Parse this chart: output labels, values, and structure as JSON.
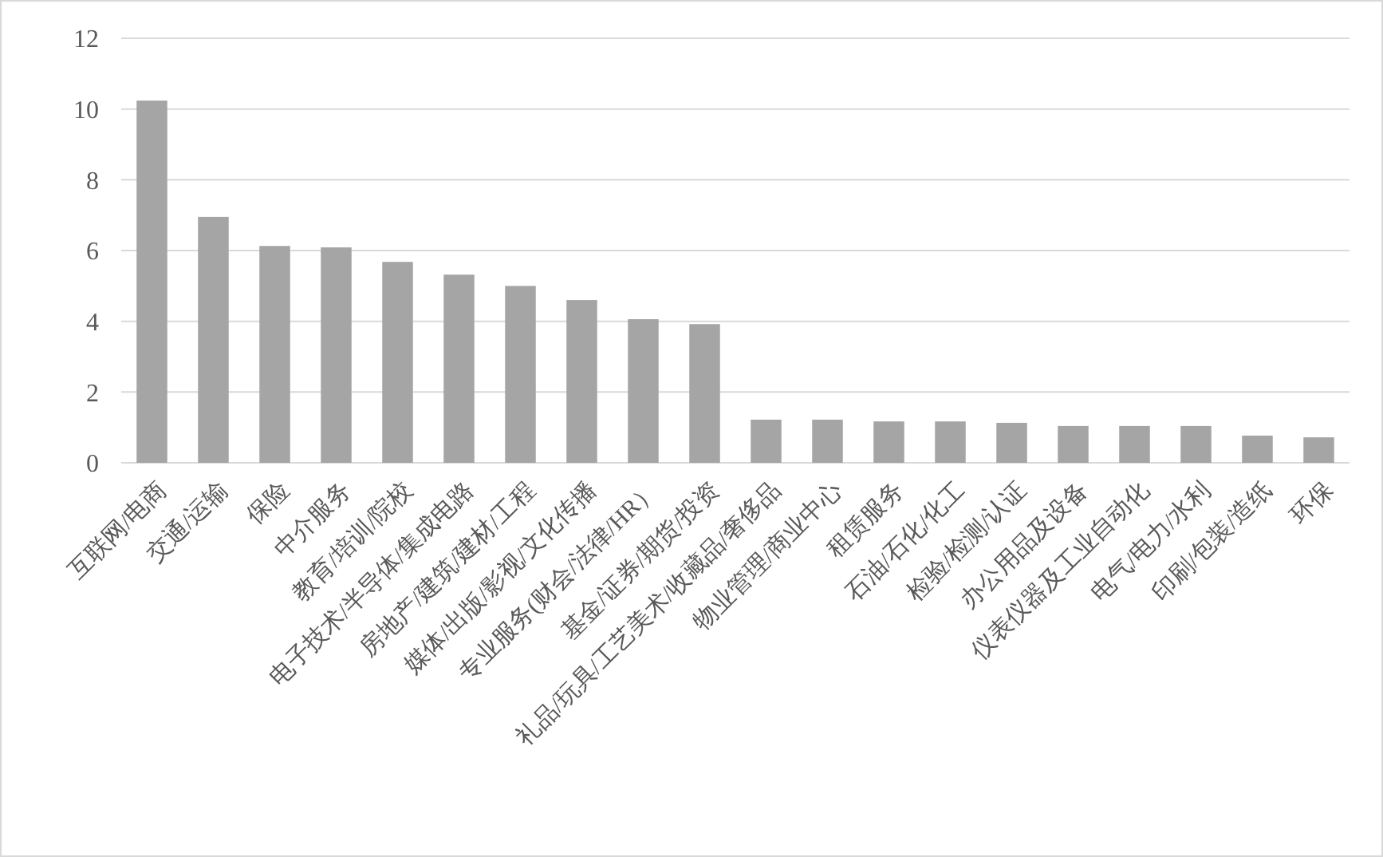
{
  "chart_data": {
    "type": "bar",
    "categories": [
      "互联网/电商",
      "交通/运输",
      "保险",
      "中介服务",
      "教育/培训/院校",
      "电子技术/半导体/集成电路",
      "房地产/建筑/建材/工程",
      "媒体/出版/影视/文化传播",
      "专业服务(财会/法律/HR）",
      "基金/证券/期货/投资",
      "礼品/玩具/工艺美术/收藏品/奢侈品",
      "物业管理/商业中心",
      "租赁服务",
      "石油/石化/化工",
      "检验/检测/认证",
      "办公用品及设备",
      "仪表仪器及工业自动化",
      "电气/电力/水利",
      "印刷/包装/造纸",
      "环保"
    ],
    "values": [
      10.24,
      6.95,
      6.13,
      6.09,
      5.68,
      5.32,
      5.0,
      4.6,
      4.06,
      3.92,
      1.22,
      1.22,
      1.17,
      1.17,
      1.13,
      1.04,
      1.04,
      1.04,
      0.77,
      0.72
    ],
    "color": "#a5a5a5",
    "ylim": [
      0,
      12
    ],
    "yticks": [
      0,
      2,
      4,
      6,
      8,
      10,
      12
    ],
    "grid": "y"
  }
}
